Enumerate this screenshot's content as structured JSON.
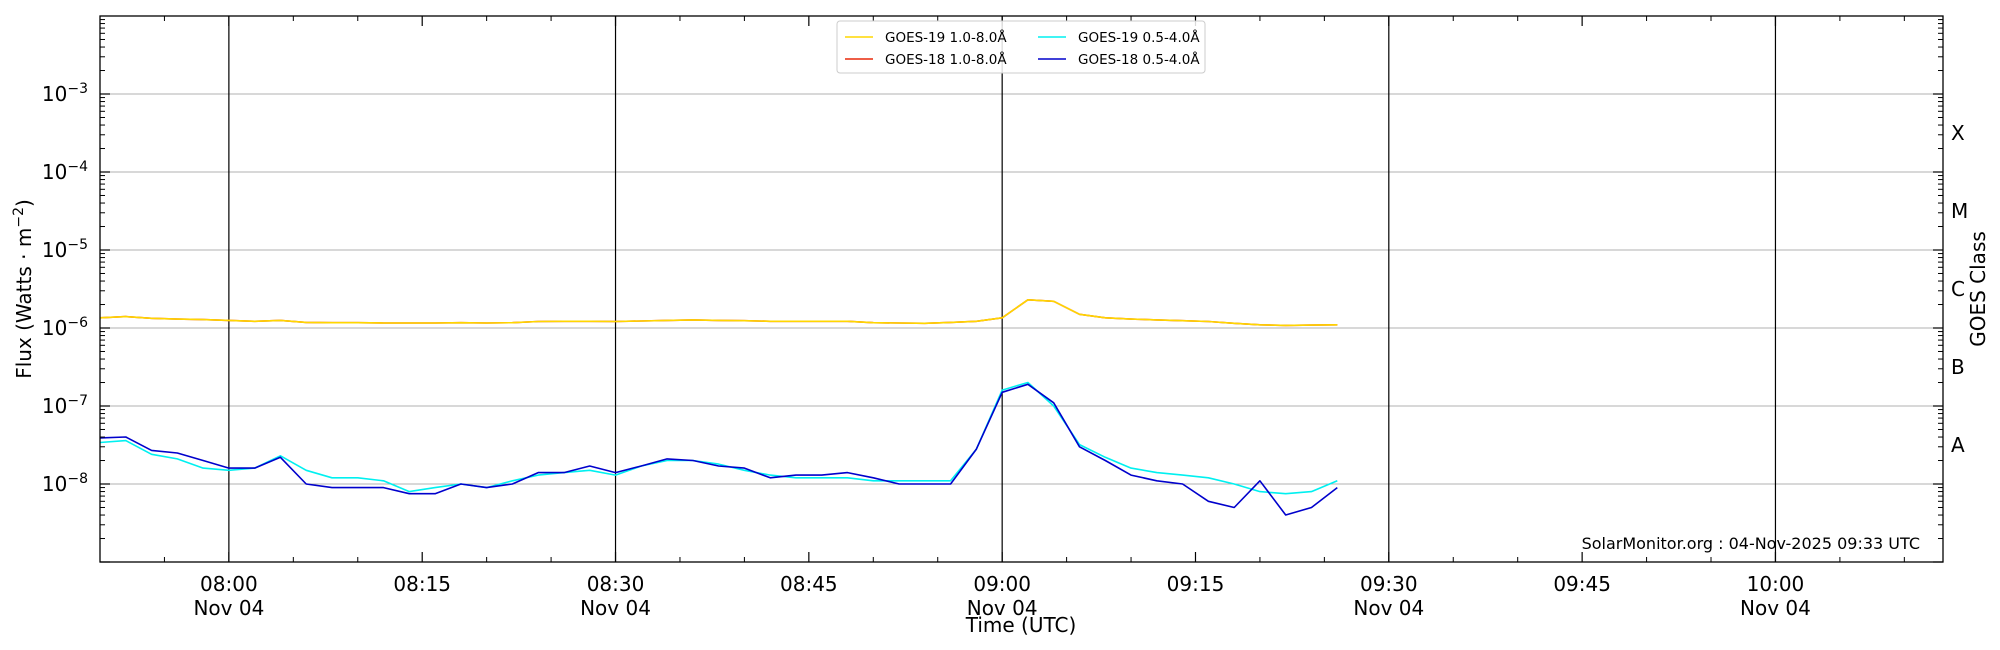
{
  "chart_data": {
    "type": "line",
    "title": "",
    "xlabel": "Time (UTC)",
    "ylabel": "Flux (Watts · m",
    "ylabel_sup": "−2",
    "ylabel_close": ")",
    "right_axis_label": "GOES Class",
    "y_scale": "log",
    "ylim_exponents": [
      -9,
      -2
    ],
    "xlim": [
      "07:50",
      "10:13"
    ],
    "grid": "horizontal",
    "legend_position": "top-center",
    "x_ticks": [
      {
        "t": "08:00",
        "time": "08:00",
        "date": "Nov 04"
      },
      {
        "t": "08:15",
        "time": "08:15",
        "date": ""
      },
      {
        "t": "08:30",
        "time": "08:30",
        "date": "Nov 04"
      },
      {
        "t": "08:45",
        "time": "08:45",
        "date": ""
      },
      {
        "t": "09:00",
        "time": "09:00",
        "date": "Nov 04"
      },
      {
        "t": "09:15",
        "time": "09:15",
        "date": ""
      },
      {
        "t": "09:30",
        "time": "09:30",
        "date": "Nov 04"
      },
      {
        "t": "09:45",
        "time": "09:45",
        "date": ""
      },
      {
        "t": "10:00",
        "time": "10:00",
        "date": "Nov 04"
      }
    ],
    "vertical_lines": [
      "08:00",
      "08:30",
      "09:00",
      "09:30",
      "10:00"
    ],
    "y_ticks": [
      {
        "exp": -3,
        "label": "10",
        "sup": "−3"
      },
      {
        "exp": -4,
        "label": "10",
        "sup": "−4"
      },
      {
        "exp": -5,
        "label": "10",
        "sup": "−5"
      },
      {
        "exp": -6,
        "label": "10",
        "sup": "−6"
      },
      {
        "exp": -7,
        "label": "10",
        "sup": "−7"
      },
      {
        "exp": -8,
        "label": "10",
        "sup": "−8"
      }
    ],
    "goes_classes": [
      {
        "label": "X",
        "exp": -3.5
      },
      {
        "label": "M",
        "exp": -4.5
      },
      {
        "label": "C",
        "exp": -5.5
      },
      {
        "label": "B",
        "exp": -6.5
      },
      {
        "label": "A",
        "exp": -7.5
      }
    ],
    "legend": [
      {
        "label": "GOES-19 1.0-8.0Å",
        "color": "#ffd700"
      },
      {
        "label": "GOES-18 1.0-8.0Å",
        "color": "#e8280a"
      },
      {
        "label": "GOES-19 0.5-4.0Å",
        "color": "#00f0f0"
      },
      {
        "label": "GOES-18 0.5-4.0Å",
        "color": "#0000cc"
      }
    ],
    "x": [
      "07:50",
      "07:52",
      "07:54",
      "07:56",
      "07:58",
      "08:00",
      "08:02",
      "08:04",
      "08:06",
      "08:08",
      "08:10",
      "08:12",
      "08:14",
      "08:16",
      "08:18",
      "08:20",
      "08:22",
      "08:24",
      "08:26",
      "08:28",
      "08:30",
      "08:32",
      "08:34",
      "08:36",
      "08:38",
      "08:40",
      "08:42",
      "08:44",
      "08:46",
      "08:48",
      "08:50",
      "08:52",
      "08:54",
      "08:56",
      "08:58",
      "09:00",
      "09:02",
      "09:04",
      "09:06",
      "09:08",
      "09:10",
      "09:12",
      "09:14",
      "09:16",
      "09:18",
      "09:20",
      "09:22",
      "09:24",
      "09:26"
    ],
    "series": [
      {
        "name": "GOES-18 1.0-8.0Å",
        "color": "#e8280a",
        "values": [
          1.35e-06,
          1.4e-06,
          1.33e-06,
          1.3e-06,
          1.28e-06,
          1.25e-06,
          1.22e-06,
          1.25e-06,
          1.18e-06,
          1.17e-06,
          1.17e-06,
          1.16e-06,
          1.16e-06,
          1.16e-06,
          1.17e-06,
          1.16e-06,
          1.17e-06,
          1.21e-06,
          1.22e-06,
          1.22e-06,
          1.21e-06,
          1.23e-06,
          1.25e-06,
          1.27e-06,
          1.25e-06,
          1.24e-06,
          1.22e-06,
          1.22e-06,
          1.22e-06,
          1.22e-06,
          1.17e-06,
          1.16e-06,
          1.15e-06,
          1.18e-06,
          1.22e-06,
          1.35e-06,
          2.3e-06,
          2.2e-06,
          1.5e-06,
          1.35e-06,
          1.3e-06,
          1.27e-06,
          1.24e-06,
          1.21e-06,
          1.15e-06,
          1.1e-06,
          1.08e-06,
          1.09e-06,
          1.1e-06
        ]
      },
      {
        "name": "GOES-19 1.0-8.0Å",
        "color": "#ffd700",
        "values": [
          1.35e-06,
          1.4e-06,
          1.33e-06,
          1.3e-06,
          1.28e-06,
          1.25e-06,
          1.22e-06,
          1.25e-06,
          1.18e-06,
          1.17e-06,
          1.17e-06,
          1.16e-06,
          1.16e-06,
          1.16e-06,
          1.17e-06,
          1.16e-06,
          1.17e-06,
          1.21e-06,
          1.22e-06,
          1.22e-06,
          1.21e-06,
          1.23e-06,
          1.25e-06,
          1.27e-06,
          1.25e-06,
          1.24e-06,
          1.22e-06,
          1.22e-06,
          1.22e-06,
          1.22e-06,
          1.17e-06,
          1.16e-06,
          1.15e-06,
          1.18e-06,
          1.22e-06,
          1.35e-06,
          2.3e-06,
          2.2e-06,
          1.5e-06,
          1.35e-06,
          1.3e-06,
          1.27e-06,
          1.24e-06,
          1.21e-06,
          1.15e-06,
          1.1e-06,
          1.08e-06,
          1.09e-06,
          1.1e-06
        ]
      },
      {
        "name": "GOES-19 0.5-4.0Å",
        "color": "#00f0f0",
        "values": [
          3.4e-08,
          3.6e-08,
          2.4e-08,
          2.1e-08,
          1.6e-08,
          1.5e-08,
          1.6e-08,
          2.3e-08,
          1.5e-08,
          1.2e-08,
          1.2e-08,
          1.1e-08,
          8e-09,
          9e-09,
          1e-08,
          9e-09,
          1.1e-08,
          1.3e-08,
          1.4e-08,
          1.5e-08,
          1.3e-08,
          1.7e-08,
          2e-08,
          2e-08,
          1.8e-08,
          1.5e-08,
          1.3e-08,
          1.2e-08,
          1.2e-08,
          1.2e-08,
          1.1e-08,
          1.1e-08,
          1.1e-08,
          1.1e-08,
          2.8e-08,
          1.6e-07,
          2e-07,
          1e-07,
          3.2e-08,
          2.2e-08,
          1.6e-08,
          1.4e-08,
          1.3e-08,
          1.2e-08,
          1e-08,
          8e-09,
          7.5e-09,
          8e-09,
          1.1e-08
        ]
      },
      {
        "name": "GOES-18 0.5-4.0Å",
        "color": "#0000cc",
        "values": [
          3.9e-08,
          4e-08,
          2.7e-08,
          2.5e-08,
          2e-08,
          1.6e-08,
          1.6e-08,
          2.2e-08,
          1e-08,
          9e-09,
          9e-09,
          9e-09,
          7.5e-09,
          7.5e-09,
          1e-08,
          9e-09,
          1e-08,
          1.4e-08,
          1.4e-08,
          1.7e-08,
          1.4e-08,
          1.7e-08,
          2.1e-08,
          2e-08,
          1.7e-08,
          1.6e-08,
          1.2e-08,
          1.3e-08,
          1.3e-08,
          1.4e-08,
          1.2e-08,
          1e-08,
          1e-08,
          1e-08,
          2.8e-08,
          1.5e-07,
          1.9e-07,
          1.1e-07,
          3e-08,
          2e-08,
          1.3e-08,
          1.1e-08,
          1e-08,
          6e-09,
          5e-09,
          1.1e-08,
          4e-09,
          5e-09,
          9e-09
        ]
      }
    ]
  },
  "credit": "SolarMonitor.org : 04-Nov-2025 09:33 UTC"
}
